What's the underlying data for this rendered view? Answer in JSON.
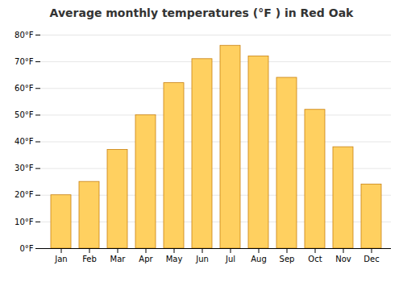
{
  "chart_data": {
    "type": "bar",
    "title": "Average monthly temperatures (°F ) in Red Oak",
    "categories": [
      "Jan",
      "Feb",
      "Mar",
      "Apr",
      "May",
      "Jun",
      "Jul",
      "Aug",
      "Sep",
      "Oct",
      "Nov",
      "Dec"
    ],
    "values": [
      20,
      25,
      37,
      50,
      62,
      71,
      76,
      72,
      64,
      52,
      38,
      24
    ],
    "color": "#FFD060",
    "ylim": [
      0,
      80
    ],
    "yticks": [
      {
        "value": 0,
        "label": "0°F"
      },
      {
        "value": 10,
        "label": "10°F"
      },
      {
        "value": 20,
        "label": "20°F"
      },
      {
        "value": 30,
        "label": "30°F"
      },
      {
        "value": 40,
        "label": "40°F"
      },
      {
        "value": 50,
        "label": "50°F"
      },
      {
        "value": 60,
        "label": "60°F"
      },
      {
        "value": 70,
        "label": "70°F"
      },
      {
        "value": 80,
        "label": "80°F"
      }
    ],
    "grid": true
  }
}
